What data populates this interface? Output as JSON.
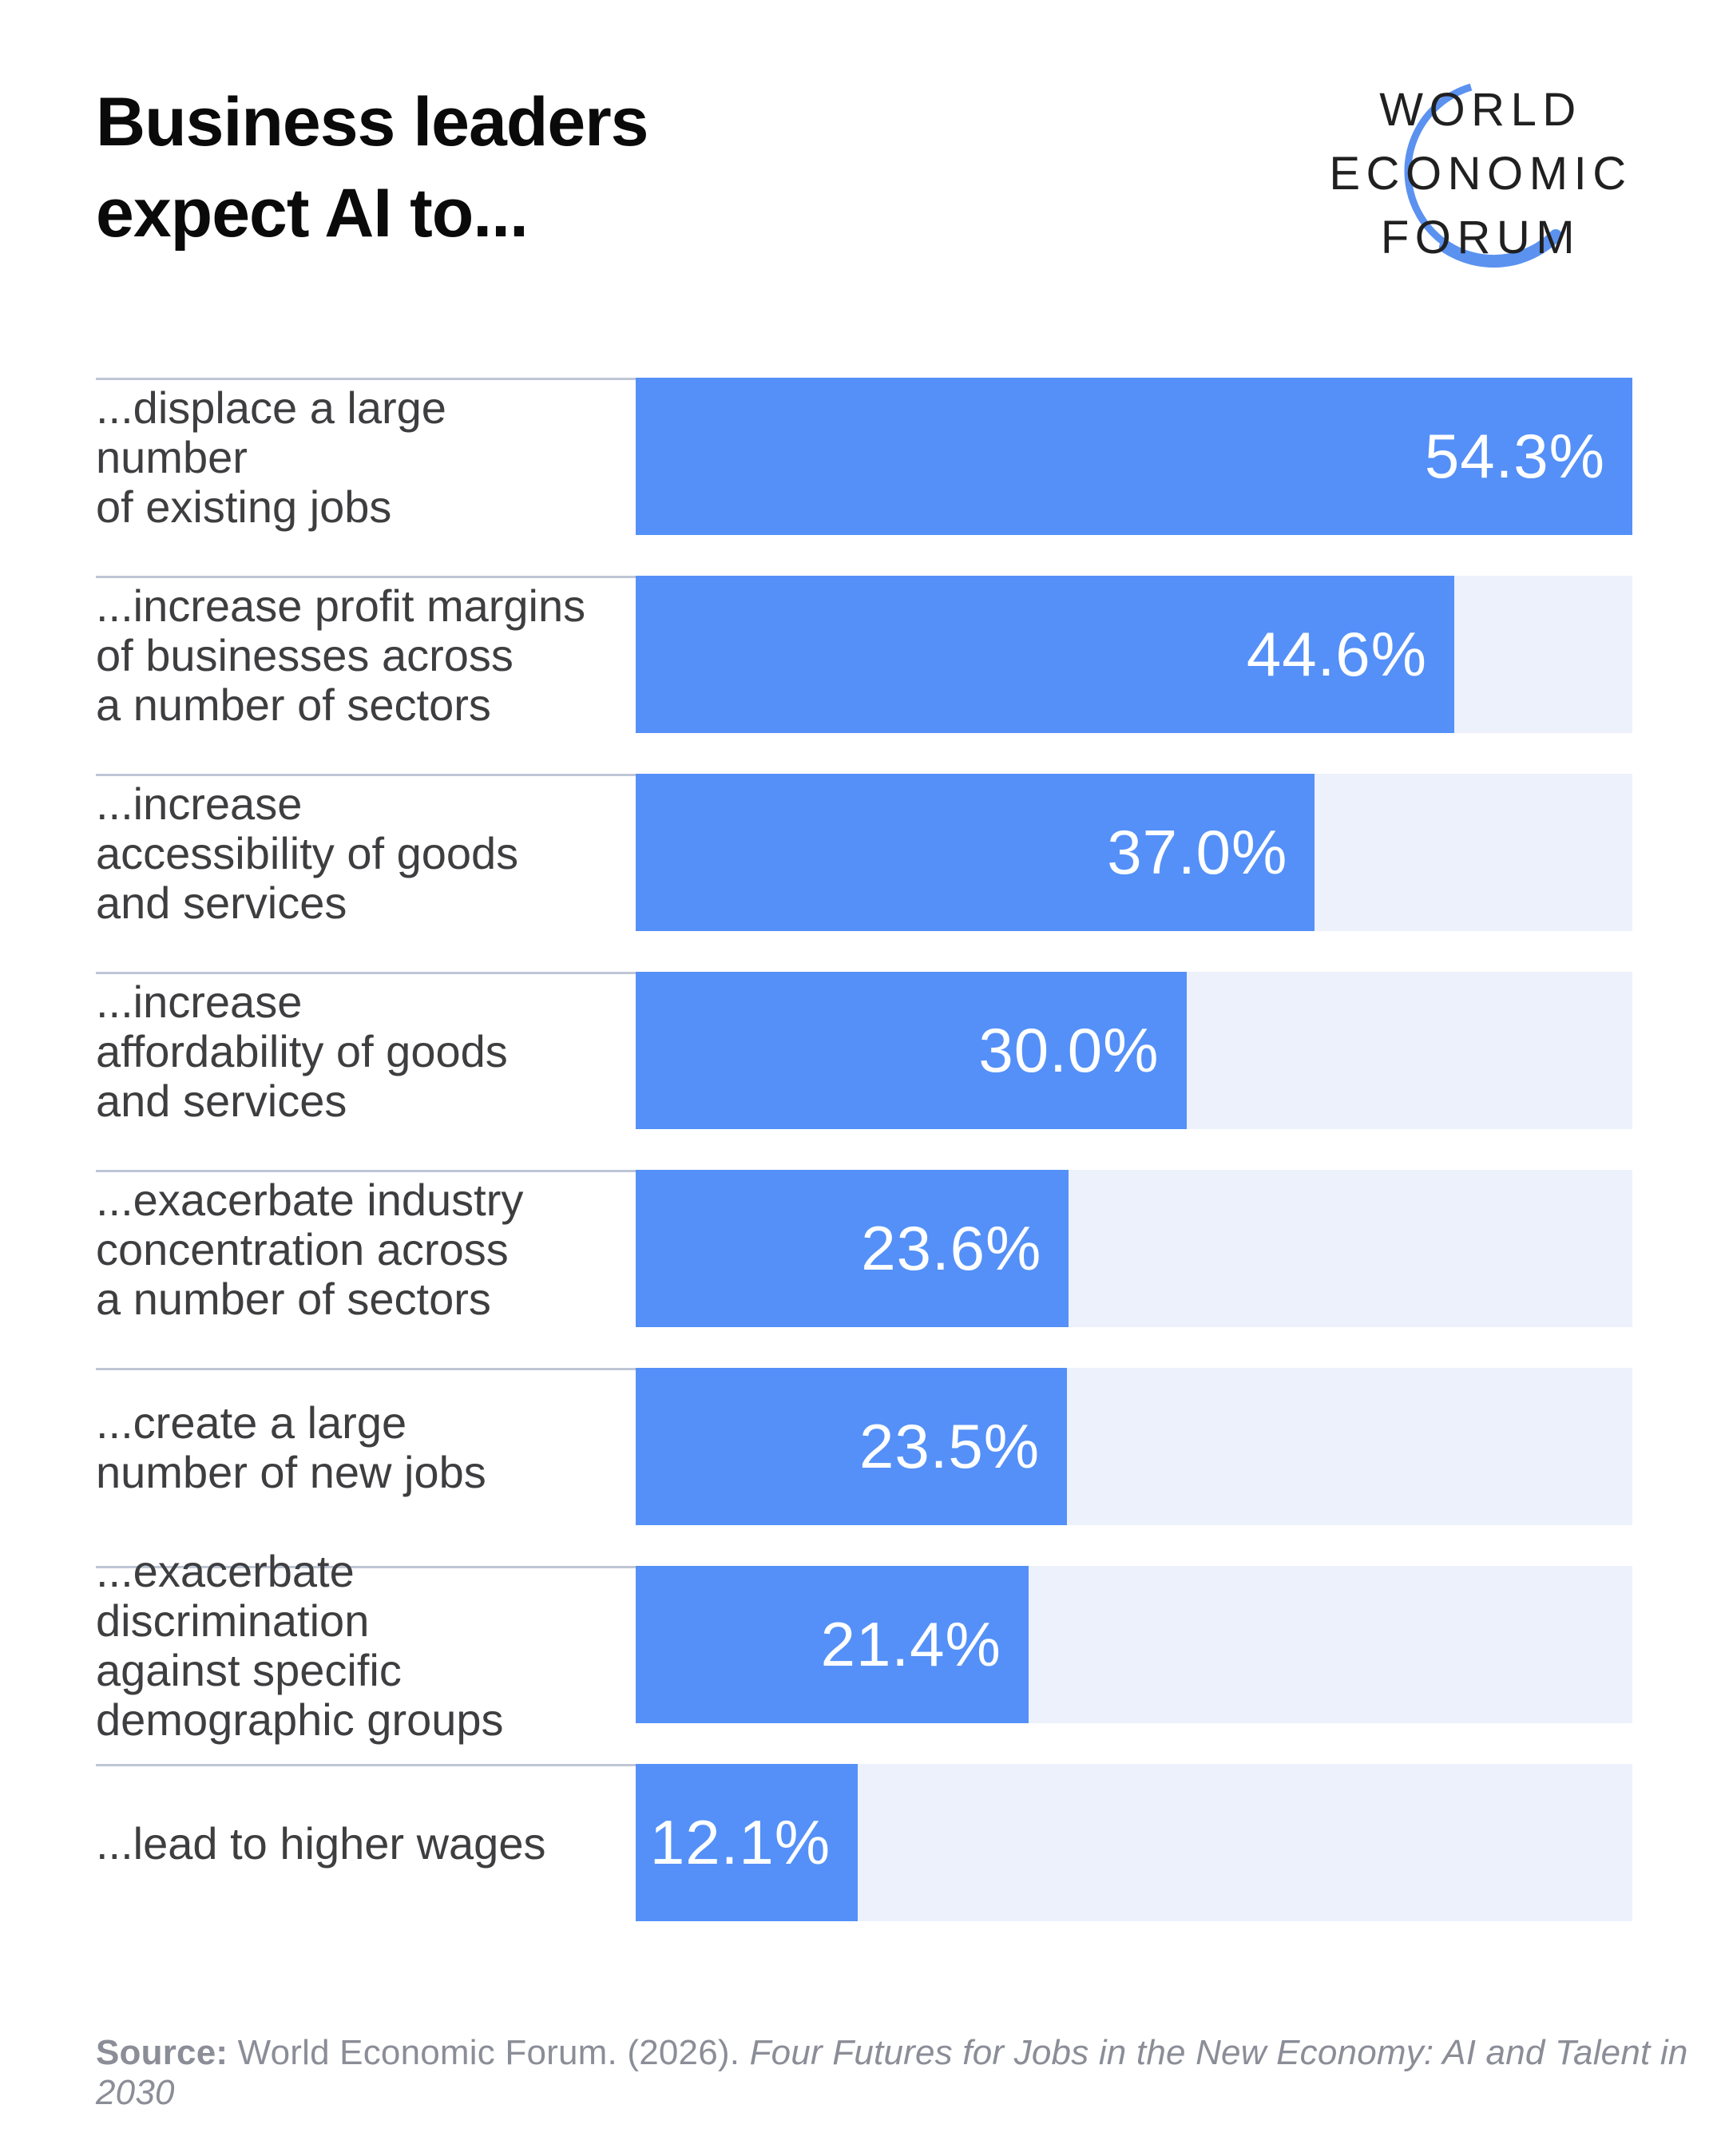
{
  "header": {
    "title_line1": "Business leaders",
    "title_line2": "expect AI to..."
  },
  "logo": {
    "line1": "WORLD",
    "line2": "ECONOMIC",
    "line3": "FORUM"
  },
  "chart_data": {
    "type": "bar",
    "orientation": "horizontal",
    "title": "Business leaders expect AI to...",
    "categories": [
      "...displace a large number\nof existing jobs",
      "...increase profit margins\nof businesses across\na number of sectors",
      "...increase\naccessibility of goods\nand services",
      "...increase\naffordability of goods\nand services",
      "...exacerbate industry\nconcentration across\na number of sectors",
      "...create a large\nnumber of new jobs",
      "...exacerbate discrimination\nagainst specific\ndemographic groups",
      "...lead to higher wages"
    ],
    "values": [
      54.3,
      44.6,
      37.0,
      30.0,
      23.6,
      23.5,
      21.4,
      12.1
    ],
    "value_labels": [
      "54.3%",
      "44.6%",
      "37.0%",
      "30.0%",
      "23.6%",
      "23.5%",
      "21.4%",
      "12.1%"
    ],
    "xlim": [
      0,
      54.3
    ],
    "grid": false,
    "legend": false,
    "value_label_position": "inside-right"
  },
  "source": {
    "label": "Source:",
    "normal": " World Economic Forum. (2026). ",
    "italic": "Four Futures for Jobs in the New Economy: AI and Talent in 2030"
  },
  "colors": {
    "bar": "#5490F8",
    "track": "#EDF1FC",
    "divider": "#BEC6D6",
    "label_text": "#3E3E40",
    "value_text": "#FFFFFF",
    "title_text": "#0A0A0A",
    "source_text": "#8B8D97",
    "logo_text": "#202020",
    "logo_arc": "#5B92F0"
  }
}
